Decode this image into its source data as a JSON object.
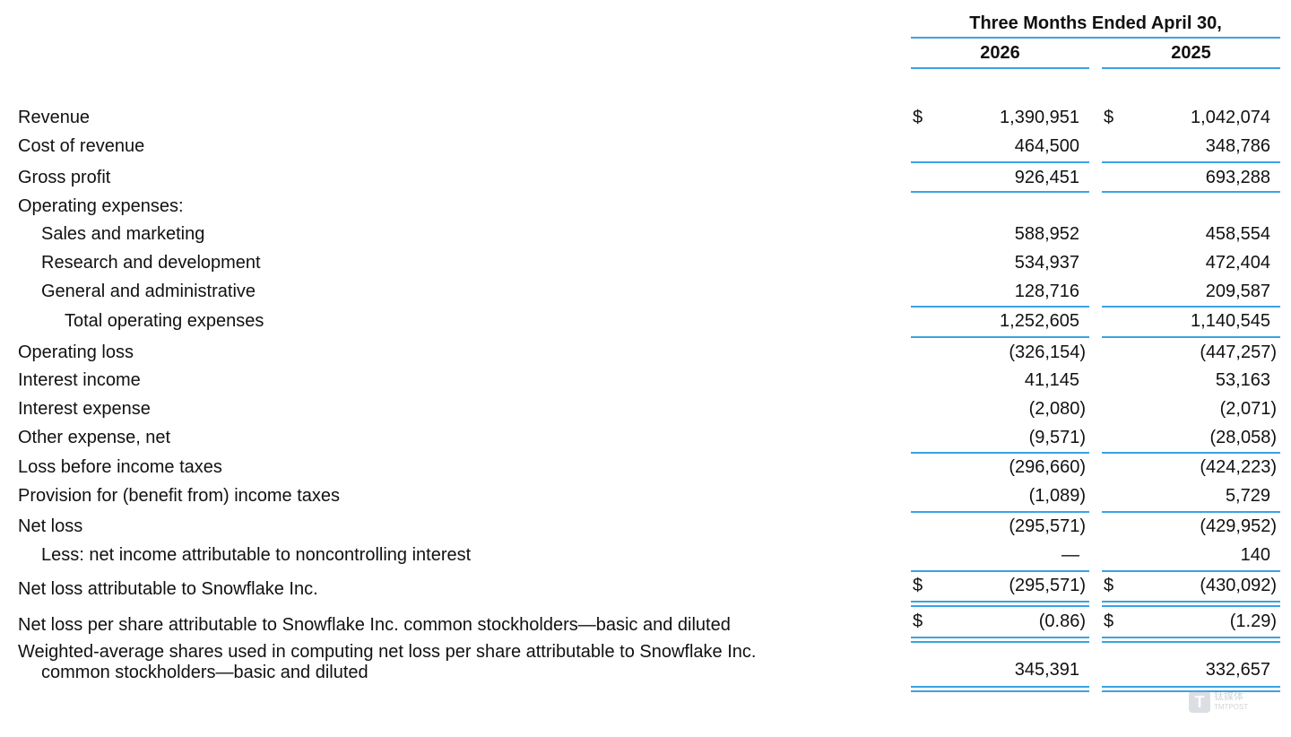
{
  "header": {
    "period": "Three Months Ended April 30,",
    "years": [
      "2026",
      "2025"
    ]
  },
  "rows": [
    {
      "label": "Revenue",
      "cur1": "$",
      "v1": "1,390,951",
      "cur2": "$",
      "v2": "1,042,074"
    },
    {
      "label": "Cost of revenue",
      "v1": "464,500",
      "v2": "348,786"
    },
    {
      "label": "Gross profit",
      "v1": "926,451",
      "v2": "693,288"
    },
    {
      "label": "Operating expenses:"
    },
    {
      "label": "Sales and marketing",
      "v1": "588,952",
      "v2": "458,554"
    },
    {
      "label": "Research and development",
      "v1": "534,937",
      "v2": "472,404"
    },
    {
      "label": "General and administrative",
      "v1": "128,716",
      "v2": "209,587"
    },
    {
      "label": "Total operating expenses",
      "v1": "1,252,605",
      "v2": "1,140,545"
    },
    {
      "label": "Operating loss",
      "v1": "(326,154)",
      "v2": "(447,257)"
    },
    {
      "label": "Interest income",
      "v1": "41,145",
      "v2": "53,163"
    },
    {
      "label": "Interest expense",
      "v1": "(2,080)",
      "v2": "(2,071)"
    },
    {
      "label": "Other expense, net",
      "v1": "(9,571)",
      "v2": "(28,058)"
    },
    {
      "label": "Loss before income taxes",
      "v1": "(296,660)",
      "v2": "(424,223)"
    },
    {
      "label": "Provision for (benefit from) income taxes",
      "v1": "(1,089)",
      "v2": "5,729"
    },
    {
      "label": "Net loss",
      "v1": "(295,571)",
      "v2": "(429,952)"
    },
    {
      "label": "Less: net income attributable to noncontrolling interest",
      "v1": "—",
      "v2": "140"
    },
    {
      "label": "Net loss attributable to Snowflake Inc.",
      "cur1": "$",
      "v1": "(295,571)",
      "cur2": "$",
      "v2": "(430,092)"
    },
    {
      "label": "Net loss per share attributable to Snowflake Inc. common stockholders—basic and diluted",
      "cur1": "$",
      "v1": "(0.86)",
      "cur2": "$",
      "v2": "(1.29)"
    }
  ],
  "weighted_average": {
    "label_line1": "Weighted-average shares used in computing net loss per share attributable to Snowflake Inc.",
    "label_line2": "common stockholders—basic and diluted",
    "v1": "345,391",
    "v2": "332,657"
  },
  "watermark": {
    "logo": "T",
    "text_cn": "钛媒体",
    "text_en": "TMTPOST"
  }
}
